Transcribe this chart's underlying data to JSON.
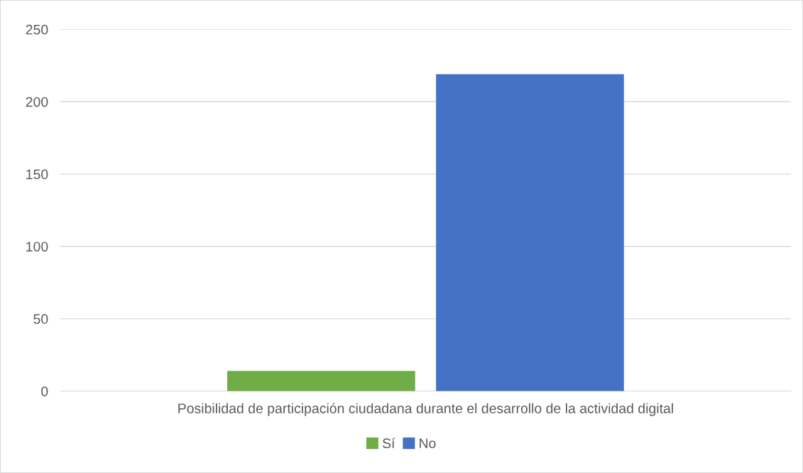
{
  "chart_data": {
    "type": "bar",
    "categories": [
      "Posibilidad de participación ciudadana durante el desarrollo de la actividad digital"
    ],
    "series": [
      {
        "name": "Sí",
        "color": "#70ad47",
        "values": [
          14
        ]
      },
      {
        "name": "No",
        "color": "#4472c4",
        "values": [
          219
        ]
      }
    ],
    "ylim": [
      0,
      250
    ],
    "yticks": [
      0,
      50,
      100,
      150,
      200,
      250
    ],
    "grid": "y",
    "legend": "bottom"
  }
}
